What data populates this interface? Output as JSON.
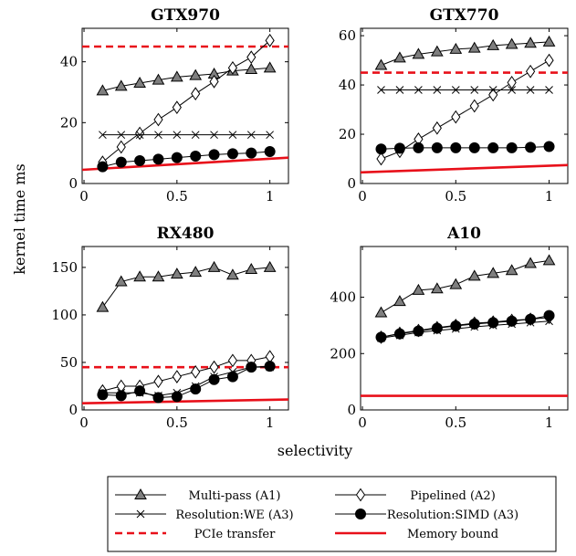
{
  "figure": {
    "shared_ylabel": "kernel time ms",
    "shared_xlabel": "selectivity"
  },
  "legend": {
    "placement": "bottom-center",
    "entries": [
      {
        "key": "multipass",
        "label": "Multi-pass (A1)",
        "marker": "triangle-filled",
        "color": "#000000",
        "style": "solid"
      },
      {
        "key": "pipelined",
        "label": "Pipelined (A2)",
        "marker": "diamond-open",
        "color": "#000000",
        "style": "solid"
      },
      {
        "key": "we",
        "label": "Resolution:WE (A3)",
        "marker": "cross",
        "color": "#000000",
        "style": "solid"
      },
      {
        "key": "simd",
        "label": "Resolution:SIMD (A3)",
        "marker": "circle-filled",
        "color": "#000000",
        "style": "solid"
      },
      {
        "key": "pcie",
        "label": "PCIe transfer",
        "marker": "none",
        "color": "#e8101a",
        "style": "dashed"
      },
      {
        "key": "mem",
        "label": "Memory bound",
        "marker": "none",
        "color": "#e8101a",
        "style": "solid"
      }
    ]
  },
  "colors": {
    "markerFill": "#7f7f7f",
    "line": "#000000",
    "red": "#e8101a"
  },
  "chart_data": [
    {
      "type": "line",
      "title": "GTX970",
      "xlim": [
        -0.01,
        1.1
      ],
      "ylim": [
        0,
        51
      ],
      "xticks": [
        0,
        0.5,
        1
      ],
      "xtick_labels": [
        "0",
        "0.5",
        "1"
      ],
      "yticks": [
        0,
        20,
        40
      ],
      "ytick_labels": [
        "0",
        "20",
        "40"
      ],
      "grid": false,
      "x": [
        0.1,
        0.2,
        0.3,
        0.4,
        0.5,
        0.6,
        0.7,
        0.8,
        0.9,
        1.0
      ],
      "series": [
        {
          "name": "Multi-pass (A1)",
          "key": "multipass",
          "values": [
            30.5,
            32,
            33,
            34,
            35,
            35.5,
            36,
            37,
            37.5,
            38
          ]
        },
        {
          "name": "Pipelined (A2)",
          "key": "pipelined",
          "values": [
            7,
            12,
            16.5,
            21,
            25,
            29.5,
            33.5,
            38,
            41.5,
            47
          ]
        },
        {
          "name": "Resolution:WE (A3)",
          "key": "we",
          "values": [
            16,
            16,
            16,
            16,
            16,
            16,
            16,
            16,
            16,
            16
          ]
        },
        {
          "name": "Resolution:SIMD (A3)",
          "key": "simd",
          "values": [
            5.5,
            7,
            7.5,
            8,
            8.5,
            9,
            9.5,
            9.8,
            10,
            10.5
          ]
        }
      ],
      "pcie": 45,
      "memory_bound": {
        "x": [
          -0.01,
          1.1
        ],
        "y": [
          4.5,
          8.5
        ]
      }
    },
    {
      "type": "line",
      "title": "GTX770",
      "xlim": [
        -0.01,
        1.1
      ],
      "ylim": [
        0,
        63
      ],
      "xticks": [
        0,
        0.5,
        1
      ],
      "xtick_labels": [
        "0",
        "0.5",
        "1"
      ],
      "yticks": [
        0,
        20,
        40,
        60
      ],
      "ytick_labels": [
        "0",
        "20",
        "40",
        "60"
      ],
      "grid": false,
      "x": [
        0.1,
        0.2,
        0.3,
        0.4,
        0.5,
        0.6,
        0.7,
        0.8,
        0.9,
        1.0
      ],
      "series": [
        {
          "name": "Multi-pass (A1)",
          "key": "multipass",
          "values": [
            48,
            51,
            52.5,
            53.5,
            54.5,
            55,
            56,
            56.5,
            57,
            57.5
          ]
        },
        {
          "name": "Pipelined (A2)",
          "key": "pipelined",
          "values": [
            10,
            13,
            18,
            22.5,
            27,
            31.5,
            36,
            41,
            45.5,
            50
          ]
        },
        {
          "name": "Resolution:WE (A3)",
          "key": "we",
          "values": [
            38,
            38,
            38,
            38,
            38,
            38,
            38,
            38,
            38,
            38
          ]
        },
        {
          "name": "Resolution:SIMD (A3)",
          "key": "simd",
          "values": [
            14,
            14.3,
            14.5,
            14.5,
            14.5,
            14.5,
            14.5,
            14.5,
            14.7,
            15
          ]
        }
      ],
      "pcie": 45,
      "memory_bound": {
        "x": [
          -0.01,
          1.1
        ],
        "y": [
          4.5,
          7.5
        ]
      }
    },
    {
      "type": "line",
      "title": "RX480",
      "xlim": [
        -0.01,
        1.1
      ],
      "ylim": [
        0,
        172
      ],
      "xticks": [
        0,
        0.5,
        1
      ],
      "xtick_labels": [
        "0",
        "0.5",
        "1"
      ],
      "yticks": [
        0,
        50,
        100,
        150
      ],
      "ytick_labels": [
        "0",
        "50",
        "100",
        "150"
      ],
      "grid": false,
      "x": [
        0.1,
        0.2,
        0.3,
        0.4,
        0.5,
        0.6,
        0.7,
        0.8,
        0.9,
        1.0
      ],
      "series": [
        {
          "name": "Multi-pass (A1)",
          "key": "multipass",
          "values": [
            108,
            135,
            140,
            140,
            143,
            145,
            150,
            142,
            148,
            150
          ]
        },
        {
          "name": "Pipelined (A2)",
          "key": "pipelined",
          "values": [
            20,
            25,
            25,
            30,
            35,
            40,
            45,
            52,
            52,
            56
          ]
        },
        {
          "name": "Resolution:WE (A3)",
          "key": "we",
          "values": [
            18,
            18,
            18,
            15,
            18,
            25,
            35,
            40,
            45,
            45
          ]
        },
        {
          "name": "Resolution:SIMD (A3)",
          "key": "simd",
          "values": [
            16,
            15,
            20,
            13,
            14,
            22,
            32,
            35,
            45,
            46
          ]
        }
      ],
      "pcie": 45,
      "memory_bound": {
        "x": [
          -0.01,
          1.1
        ],
        "y": [
          7,
          11
        ]
      }
    },
    {
      "type": "line",
      "title": "A10",
      "xlim": [
        -0.01,
        1.1
      ],
      "ylim": [
        0,
        580
      ],
      "xticks": [
        0,
        0.5,
        1
      ],
      "xtick_labels": [
        "0",
        "0.5",
        "1"
      ],
      "yticks": [
        0,
        200,
        400
      ],
      "ytick_labels": [
        "0",
        "200",
        "400"
      ],
      "grid": false,
      "x": [
        0.1,
        0.2,
        0.3,
        0.4,
        0.5,
        0.6,
        0.7,
        0.8,
        0.9,
        1.0
      ],
      "series": [
        {
          "name": "Multi-pass (A1)",
          "key": "multipass",
          "values": [
            345,
            385,
            425,
            430,
            445,
            475,
            485,
            495,
            520,
            530
          ]
        },
        {
          "name": "Pipelined (A2)",
          "key": "pipelined",
          "values": [
            258,
            272,
            282,
            292,
            300,
            308,
            312,
            318,
            322,
            328
          ]
        },
        {
          "name": "Resolution:WE (A3)",
          "key": "we",
          "values": [
            255,
            265,
            275,
            282,
            288,
            295,
            300,
            305,
            310,
            315
          ]
        },
        {
          "name": "Resolution:SIMD (A3)",
          "key": "simd",
          "values": [
            258,
            270,
            280,
            290,
            298,
            305,
            310,
            315,
            322,
            335
          ]
        }
      ],
      "memory_bound": {
        "x": [
          -0.01,
          1.1
        ],
        "y": [
          50,
          50
        ]
      }
    }
  ]
}
